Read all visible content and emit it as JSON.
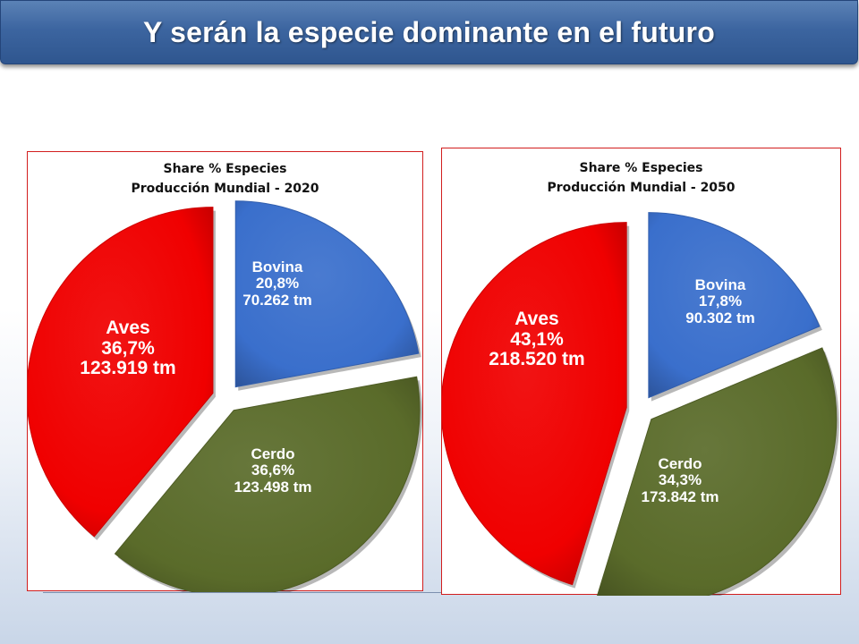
{
  "title": "Y serán la especie dominante en el futuro",
  "chart_data": [
    {
      "type": "pie",
      "title": "Share % Especies",
      "subtitle": "Producción Mundial - 2020",
      "slices": [
        {
          "name": "Bovina",
          "percent_label": "20,8%",
          "value_label": "70.262 tm",
          "percent": 20.8,
          "value": 70262,
          "color": "#3a6fcc"
        },
        {
          "name": "Cerdo",
          "percent_label": "36,6%",
          "value_label": "123.498 tm",
          "percent": 36.6,
          "value": 123498,
          "color": "#5a6b2a"
        },
        {
          "name": "Aves",
          "percent_label": "36,7%",
          "value_label": "123.919 tm",
          "percent": 36.7,
          "value": 123919,
          "color": "#f00000"
        }
      ]
    },
    {
      "type": "pie",
      "title": "Share % Especies",
      "subtitle": "Producción Mundial - 2050",
      "slices": [
        {
          "name": "Bovina",
          "percent_label": "17,8%",
          "value_label": "90.302 tm",
          "percent": 17.8,
          "value": 90302,
          "color": "#3a6fcc"
        },
        {
          "name": "Cerdo",
          "percent_label": "34,3%",
          "value_label": "173.842 tm",
          "percent": 34.3,
          "value": 173842,
          "color": "#5a6b2a"
        },
        {
          "name": "Aves",
          "percent_label": "43,1%",
          "value_label": "218.520 tm",
          "percent": 43.1,
          "value": 218520,
          "color": "#f00000"
        }
      ]
    }
  ]
}
